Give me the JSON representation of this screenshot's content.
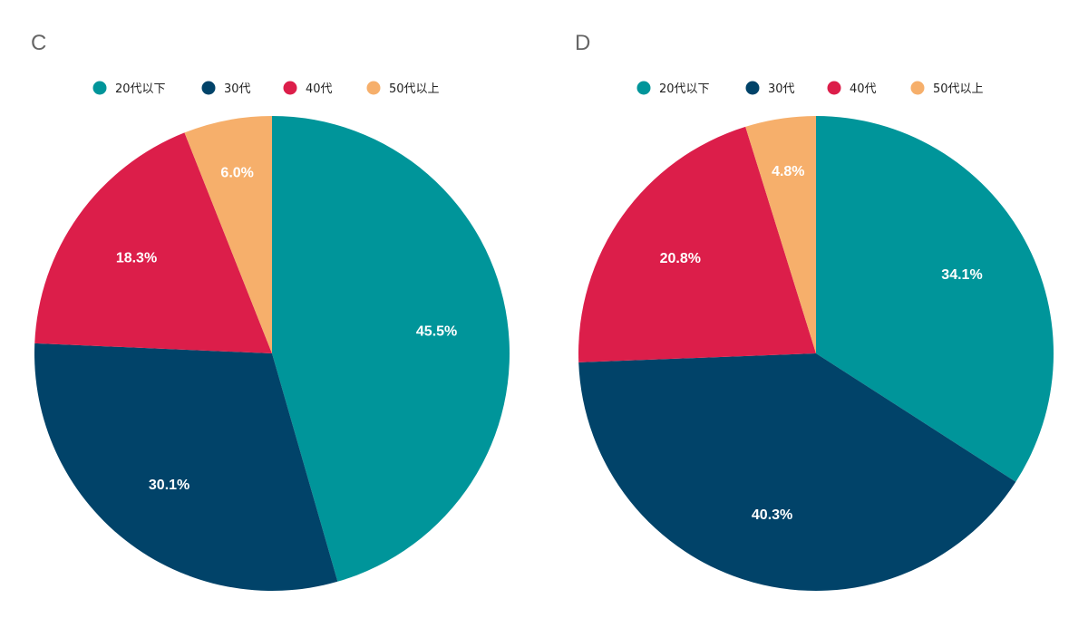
{
  "colors": {
    "teal": "#00959a",
    "navy": "#014369",
    "crimson": "#dc1e4a",
    "orange": "#f6af6b"
  },
  "chart_data": [
    {
      "type": "pie",
      "title": "C",
      "legend_position": "top",
      "categories": [
        "20代以下",
        "30代",
        "40代",
        "50代以上"
      ],
      "values": [
        45.5,
        30.1,
        18.3,
        6.0
      ],
      "value_labels": [
        "45.5%",
        "30.1%",
        "18.3%",
        "6.0%"
      ],
      "start_angle": "12 o'clock",
      "direction": "clockwise"
    },
    {
      "type": "pie",
      "title": "D",
      "legend_position": "top",
      "categories": [
        "20代以下",
        "30代",
        "40代",
        "50代以上"
      ],
      "values": [
        34.1,
        40.3,
        20.8,
        4.8
      ],
      "value_labels": [
        "34.1%",
        "40.3%",
        "20.8%",
        "4.8%"
      ],
      "start_angle": "12 o'clock",
      "direction": "clockwise"
    }
  ]
}
